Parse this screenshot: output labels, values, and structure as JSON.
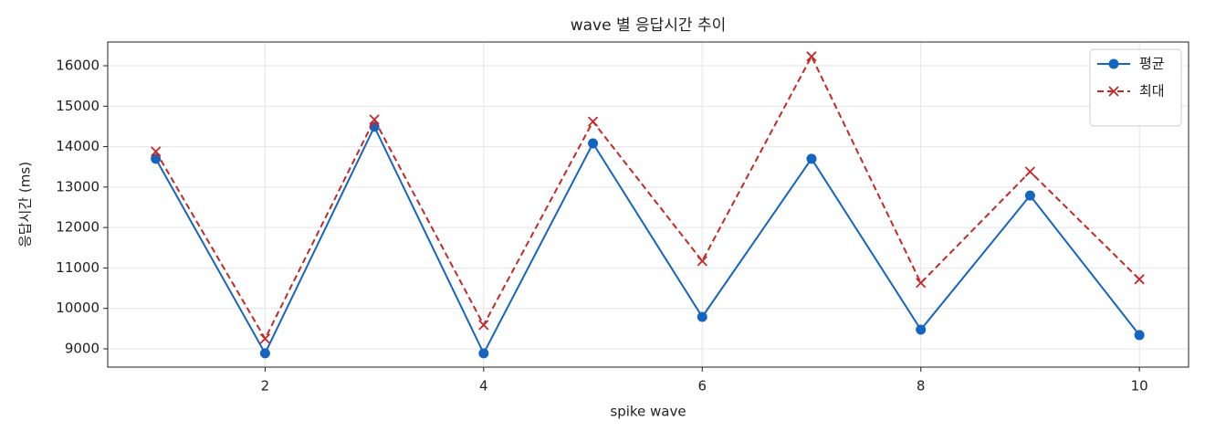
{
  "chart_data": {
    "type": "line",
    "title": "wave 별 응답시간 추이",
    "x_label": "spike wave",
    "y_label": "응답시간 (ms)",
    "x": [
      1,
      2,
      3,
      4,
      5,
      6,
      7,
      8,
      9,
      10
    ],
    "series": [
      {
        "name": "평균",
        "color": "#1565c0",
        "marker": "circle",
        "linestyle": "solid",
        "values": [
          13700,
          8890,
          14490,
          8890,
          14080,
          9790,
          13700,
          9475,
          12790,
          9340
        ]
      },
      {
        "name": "최대",
        "color": "#c62828",
        "marker": "x",
        "linestyle": "dashed",
        "values": [
          13880,
          9250,
          14670,
          9590,
          14620,
          11170,
          16230,
          10630,
          13380,
          10720
        ]
      }
    ],
    "xlim": [
      0.56,
      10.45
    ],
    "ylim": [
      8548,
      16587
    ],
    "xticks": [
      2,
      4,
      6,
      8,
      10
    ],
    "yticks": [
      9000,
      10000,
      11000,
      12000,
      13000,
      14000,
      15000,
      16000
    ],
    "grid": true,
    "legend": "upper right"
  }
}
